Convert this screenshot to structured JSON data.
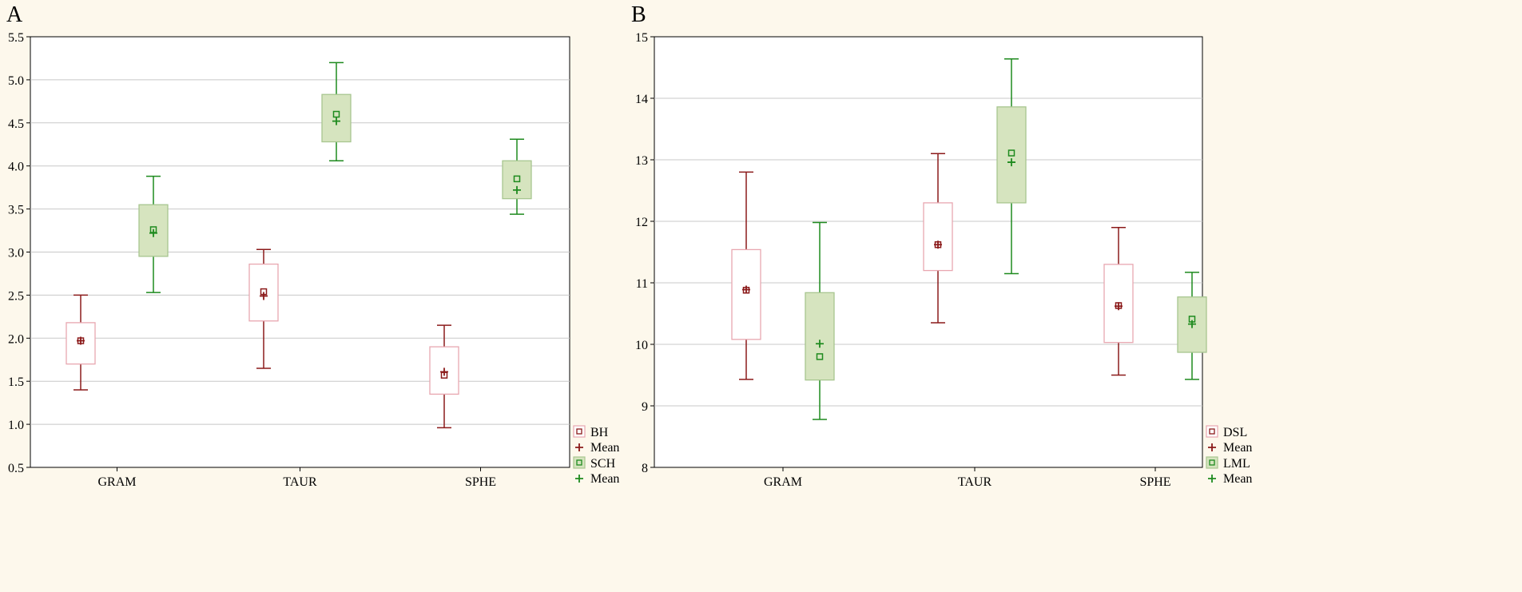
{
  "chart_data": [
    {
      "type": "box",
      "panel_label": "A",
      "categories": [
        "GRAM",
        "TAUR",
        "SPHE"
      ],
      "ylim": [
        0.5,
        5.5
      ],
      "yticks": [
        "0.5",
        "1.0",
        "1.5",
        "2.0",
        "2.5",
        "3.0",
        "3.5",
        "4.0",
        "4.5",
        "5.0",
        "5.5"
      ],
      "grid": true,
      "legend_position": "bottom-right",
      "series": [
        {
          "name": "BH",
          "mean_label": "Mean",
          "style": "outline",
          "color": "#8b1a1a",
          "box_stroke": "#e8a7b0",
          "box_fill": "#ffffff",
          "stats": [
            {
              "category": "GRAM",
              "whisker_low": 1.4,
              "q1": 1.7,
              "median": 1.97,
              "mean": 1.97,
              "q3": 2.18,
              "whisker_high": 2.5
            },
            {
              "category": "TAUR",
              "whisker_low": 1.65,
              "q1": 2.2,
              "median": 2.54,
              "mean": 2.49,
              "q3": 2.86,
              "whisker_high": 3.03
            },
            {
              "category": "SPHE",
              "whisker_low": 0.96,
              "q1": 1.35,
              "median": 1.57,
              "mean": 1.61,
              "q3": 1.9,
              "whisker_high": 2.15
            }
          ]
        },
        {
          "name": "SCH",
          "mean_label": "Mean",
          "style": "filled",
          "color": "#1e8a1e",
          "box_stroke": "#a8c690",
          "box_fill": "#d6e4bf",
          "stats": [
            {
              "category": "GRAM",
              "whisker_low": 2.53,
              "q1": 2.95,
              "median": 3.26,
              "mean": 3.22,
              "q3": 3.55,
              "whisker_high": 3.88
            },
            {
              "category": "TAUR",
              "whisker_low": 4.06,
              "q1": 4.28,
              "median": 4.6,
              "mean": 4.52,
              "q3": 4.83,
              "whisker_high": 5.2
            },
            {
              "category": "SPHE",
              "whisker_low": 3.44,
              "q1": 3.62,
              "median": 3.85,
              "mean": 3.72,
              "q3": 4.06,
              "whisker_high": 4.31
            }
          ]
        }
      ]
    },
    {
      "type": "box",
      "panel_label": "B",
      "categories": [
        "GRAM",
        "TAUR",
        "SPHE"
      ],
      "ylim": [
        8,
        15
      ],
      "yticks": [
        "8",
        "9",
        "10",
        "11",
        "12",
        "13",
        "14",
        "15"
      ],
      "grid": true,
      "legend_position": "bottom-right",
      "series": [
        {
          "name": "DSL",
          "mean_label": "Mean",
          "style": "outline",
          "color": "#8b1a1a",
          "box_stroke": "#e8a7b0",
          "box_fill": "#ffffff",
          "stats": [
            {
              "category": "GRAM",
              "whisker_low": 9.43,
              "q1": 10.08,
              "median": 10.88,
              "mean": 10.89,
              "q3": 11.54,
              "whisker_high": 12.8
            },
            {
              "category": "TAUR",
              "whisker_low": 10.35,
              "q1": 11.2,
              "median": 11.62,
              "mean": 11.62,
              "q3": 12.3,
              "whisker_high": 13.1
            },
            {
              "category": "SPHE",
              "whisker_low": 9.5,
              "q1": 10.03,
              "median": 10.63,
              "mean": 10.62,
              "q3": 11.3,
              "whisker_high": 11.9
            }
          ]
        },
        {
          "name": "LML",
          "mean_label": "Mean",
          "style": "filled",
          "color": "#1e8a1e",
          "box_stroke": "#a8c690",
          "box_fill": "#d6e4bf",
          "stats": [
            {
              "category": "GRAM",
              "whisker_low": 8.78,
              "q1": 9.42,
              "median": 9.8,
              "mean": 10.01,
              "q3": 10.84,
              "whisker_high": 11.98
            },
            {
              "category": "TAUR",
              "whisker_low": 11.15,
              "q1": 12.3,
              "median": 13.11,
              "mean": 12.96,
              "q3": 13.86,
              "whisker_high": 14.64
            },
            {
              "category": "SPHE",
              "whisker_low": 9.43,
              "q1": 9.87,
              "median": 10.41,
              "mean": 10.33,
              "q3": 10.77,
              "whisker_high": 11.17
            }
          ]
        }
      ]
    }
  ]
}
